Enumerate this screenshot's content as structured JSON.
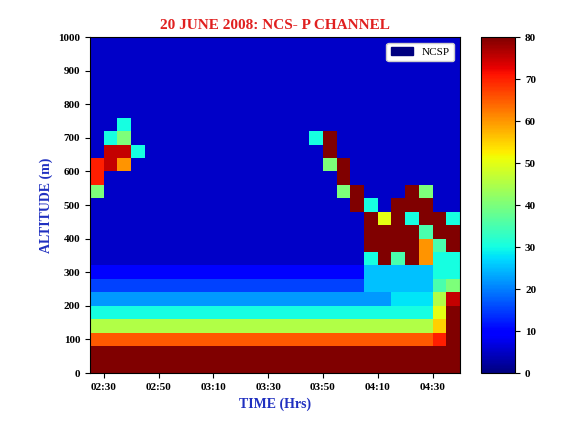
{
  "chart_data": {
    "type": "heatmap",
    "title": "20 JUNE 2008: NCS- P CHANNEL",
    "x_label": "TIME (Hrs)",
    "y_label": "ALTITUDE (m)",
    "xlim": [
      145,
      280
    ],
    "ylim": [
      0,
      1000
    ],
    "xticks": [
      {
        "value": 150,
        "label": "02:30"
      },
      {
        "value": 170,
        "label": "02:50"
      },
      {
        "value": 190,
        "label": "03:10"
      },
      {
        "value": 210,
        "label": "03:30"
      },
      {
        "value": 230,
        "label": "03:50"
      },
      {
        "value": 250,
        "label": "04:10"
      },
      {
        "value": 270,
        "label": "04:30"
      }
    ],
    "yticks": [
      0,
      100,
      200,
      300,
      400,
      500,
      600,
      700,
      800,
      900,
      1000
    ],
    "legend": "upper right",
    "series": [
      {
        "name": "NCSP",
        "color": "#00007f"
      }
    ],
    "colorbar_range": [
      0,
      80
    ],
    "colorbar_ticks": [
      0,
      10,
      20,
      30,
      40,
      50,
      60,
      70,
      80
    ],
    "x_edges": [
      145,
      150,
      155,
      160,
      165,
      170,
      175,
      180,
      185,
      190,
      195,
      200,
      205,
      210,
      215,
      220,
      225,
      230,
      235,
      240,
      245,
      250,
      255,
      260,
      265,
      270,
      275,
      280
    ],
    "y_edges": [
      0,
      40,
      80,
      120,
      160,
      200,
      240,
      280,
      320,
      360,
      400,
      440,
      480,
      520,
      560,
      600,
      640,
      680,
      720,
      760,
      800,
      840,
      880,
      920,
      960,
      1000
    ],
    "cells": [
      [
        80,
        80,
        80,
        80,
        80,
        80,
        80,
        80,
        80,
        80,
        80,
        80,
        80,
        80,
        80,
        80,
        80,
        80,
        80,
        80,
        80,
        80,
        80,
        80,
        80,
        80,
        80
      ],
      [
        80,
        80,
        80,
        80,
        80,
        80,
        80,
        80,
        80,
        80,
        80,
        80,
        80,
        80,
        80,
        80,
        80,
        80,
        80,
        80,
        80,
        80,
        80,
        80,
        80,
        80,
        80
      ],
      [
        65,
        65,
        65,
        65,
        65,
        65,
        65,
        65,
        65,
        65,
        65,
        65,
        65,
        65,
        65,
        65,
        65,
        65,
        65,
        65,
        65,
        65,
        65,
        65,
        65,
        70,
        80
      ],
      [
        45,
        45,
        45,
        45,
        45,
        45,
        45,
        45,
        45,
        45,
        45,
        45,
        45,
        45,
        45,
        45,
        45,
        45,
        45,
        45,
        45,
        45,
        45,
        45,
        45,
        55,
        80
      ],
      [
        30,
        30,
        30,
        30,
        30,
        30,
        30,
        30,
        30,
        30,
        30,
        30,
        30,
        30,
        30,
        30,
        30,
        30,
        30,
        30,
        30,
        30,
        30,
        30,
        30,
        50,
        80
      ],
      [
        22,
        22,
        22,
        22,
        22,
        22,
        22,
        22,
        22,
        22,
        22,
        22,
        22,
        22,
        22,
        22,
        22,
        22,
        22,
        22,
        22,
        22,
        28,
        28,
        28,
        45,
        75
      ],
      [
        15,
        15,
        15,
        15,
        15,
        15,
        15,
        15,
        15,
        15,
        15,
        15,
        15,
        15,
        15,
        15,
        15,
        15,
        15,
        15,
        25,
        25,
        25,
        25,
        25,
        35,
        40
      ],
      [
        10,
        10,
        10,
        10,
        10,
        10,
        10,
        10,
        10,
        10,
        10,
        10,
        10,
        10,
        10,
        10,
        10,
        10,
        10,
        10,
        25,
        25,
        25,
        25,
        25,
        30,
        30
      ],
      [
        5,
        5,
        5,
        5,
        5,
        5,
        5,
        5,
        5,
        5,
        5,
        5,
        5,
        5,
        5,
        5,
        5,
        5,
        5,
        5,
        30,
        80,
        35,
        80,
        60,
        30,
        30
      ],
      [
        5,
        5,
        5,
        5,
        5,
        5,
        5,
        5,
        5,
        5,
        5,
        5,
        5,
        5,
        5,
        5,
        5,
        5,
        5,
        5,
        80,
        80,
        80,
        80,
        60,
        35,
        80
      ],
      [
        5,
        5,
        5,
        5,
        5,
        5,
        5,
        5,
        5,
        5,
        5,
        5,
        5,
        5,
        5,
        5,
        5,
        5,
        5,
        5,
        80,
        80,
        80,
        80,
        35,
        80,
        80
      ],
      [
        5,
        5,
        5,
        5,
        5,
        5,
        5,
        5,
        5,
        5,
        5,
        5,
        5,
        5,
        5,
        5,
        5,
        5,
        5,
        5,
        80,
        50,
        80,
        30,
        80,
        80,
        30
      ],
      [
        5,
        5,
        5,
        5,
        5,
        5,
        5,
        5,
        5,
        5,
        5,
        5,
        5,
        5,
        5,
        5,
        5,
        5,
        5,
        80,
        30,
        5,
        80,
        80,
        80,
        5,
        5
      ],
      [
        40,
        5,
        5,
        5,
        5,
        5,
        5,
        5,
        5,
        5,
        5,
        5,
        5,
        5,
        5,
        5,
        5,
        5,
        40,
        80,
        5,
        5,
        5,
        80,
        40,
        5,
        5
      ],
      [
        70,
        5,
        5,
        5,
        5,
        5,
        5,
        5,
        5,
        5,
        5,
        5,
        5,
        5,
        5,
        5,
        5,
        5,
        80,
        5,
        5,
        5,
        5,
        5,
        5,
        5,
        5
      ],
      [
        70,
        75,
        60,
        5,
        5,
        5,
        5,
        5,
        5,
        5,
        5,
        5,
        5,
        5,
        5,
        5,
        5,
        40,
        80,
        5,
        5,
        5,
        5,
        5,
        5,
        5,
        5
      ],
      [
        5,
        75,
        75,
        30,
        5,
        5,
        5,
        5,
        5,
        5,
        5,
        5,
        5,
        5,
        5,
        5,
        5,
        80,
        5,
        5,
        5,
        5,
        5,
        5,
        5,
        5,
        5
      ],
      [
        5,
        30,
        40,
        5,
        5,
        5,
        5,
        5,
        5,
        5,
        5,
        5,
        5,
        5,
        5,
        5,
        30,
        80,
        5,
        5,
        5,
        5,
        5,
        5,
        5,
        5,
        5
      ],
      [
        5,
        5,
        30,
        5,
        5,
        5,
        5,
        5,
        5,
        5,
        5,
        5,
        5,
        5,
        5,
        5,
        5,
        5,
        5,
        5,
        5,
        5,
        5,
        5,
        5,
        5,
        5
      ],
      [
        5,
        5,
        5,
        5,
        5,
        5,
        5,
        5,
        5,
        5,
        5,
        5,
        5,
        5,
        5,
        5,
        5,
        5,
        5,
        5,
        5,
        5,
        5,
        5,
        5,
        5,
        5
      ],
      [
        5,
        5,
        5,
        5,
        5,
        5,
        5,
        5,
        5,
        5,
        5,
        5,
        5,
        5,
        5,
        5,
        5,
        5,
        5,
        5,
        5,
        5,
        5,
        5,
        5,
        5,
        5
      ],
      [
        5,
        5,
        5,
        5,
        5,
        5,
        5,
        5,
        5,
        5,
        5,
        5,
        5,
        5,
        5,
        5,
        5,
        5,
        5,
        5,
        5,
        5,
        5,
        5,
        5,
        5,
        5
      ],
      [
        5,
        5,
        5,
        5,
        5,
        5,
        5,
        5,
        5,
        5,
        5,
        5,
        5,
        5,
        5,
        5,
        5,
        5,
        5,
        5,
        5,
        5,
        5,
        5,
        5,
        5,
        5
      ],
      [
        5,
        5,
        5,
        5,
        5,
        5,
        5,
        5,
        5,
        5,
        5,
        5,
        5,
        5,
        5,
        5,
        5,
        5,
        5,
        5,
        5,
        5,
        5,
        5,
        5,
        5,
        5
      ],
      [
        5,
        5,
        5,
        5,
        5,
        5,
        5,
        5,
        5,
        5,
        5,
        5,
        5,
        5,
        5,
        5,
        5,
        5,
        5,
        5,
        5,
        5,
        5,
        5,
        5,
        5,
        5
      ]
    ]
  }
}
